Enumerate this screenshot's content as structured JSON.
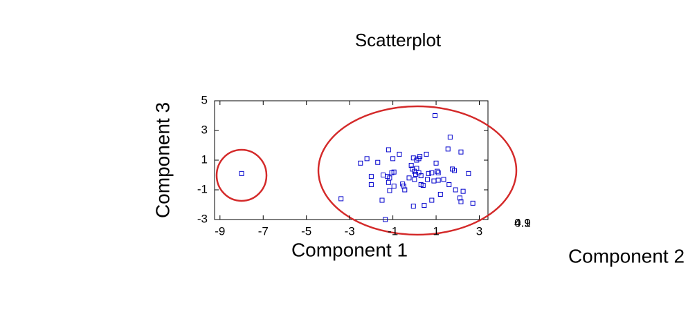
{
  "chart_data": {
    "type": "scatter",
    "title": "Scatterplot",
    "x_label": "Component 1",
    "y_label": "Component 3",
    "z_label": "Component 2",
    "z_tick_labels": [
      "0.1",
      "4.9"
    ],
    "color": "#0000cc",
    "xlim": [
      -9.25,
      3.4
    ],
    "xticks": [
      -9,
      -7,
      -5,
      -3,
      -1,
      1,
      3
    ],
    "ylim": [
      -3,
      5
    ],
    "yticks": [
      -3,
      -1,
      1,
      3,
      5
    ],
    "x": [
      -8.0,
      -3.4,
      -2.5,
      -2.2,
      -1.7,
      -2.0,
      -2.0,
      -1.45,
      -1.5,
      -1.35,
      -1.2,
      -1.25,
      -1.15,
      -1.05,
      -0.95,
      -1.2,
      -1.15,
      -1.0,
      -0.7,
      -0.95,
      -0.55,
      -0.5,
      -0.45,
      -0.25,
      -0.15,
      -0.1,
      -0.05,
      0.0,
      0.05,
      -0.05,
      0.0,
      0.1,
      0.1,
      0.2,
      0.25,
      0.2,
      0.3,
      0.3,
      0.4,
      0.45,
      0.55,
      0.6,
      0.65,
      0.8,
      0.8,
      0.9,
      0.95,
      1.0,
      1.05,
      1.1,
      1.1,
      1.2,
      1.35,
      1.55,
      1.6,
      1.65,
      1.75,
      1.85,
      1.9,
      2.15,
      2.1,
      2.15,
      2.25,
      2.5,
      2.7
    ],
    "values": [
      0.1,
      -1.6,
      0.8,
      1.1,
      0.85,
      -0.1,
      -0.65,
      0.0,
      -1.7,
      -3.0,
      1.7,
      -0.1,
      -0.2,
      0.15,
      0.2,
      -0.5,
      -1.05,
      1.1,
      1.4,
      -0.75,
      -0.6,
      -0.75,
      -1.0,
      -0.2,
      0.65,
      0.4,
      1.15,
      0.25,
      0.05,
      -2.1,
      -0.3,
      0.45,
      1.0,
      1.1,
      1.25,
      0.15,
      -0.05,
      -0.65,
      -0.7,
      -2.05,
      1.4,
      -0.3,
      0.1,
      0.15,
      -1.7,
      -0.4,
      4.0,
      0.8,
      0.25,
      0.15,
      -0.35,
      -1.3,
      -0.3,
      1.75,
      -0.65,
      2.55,
      0.4,
      0.3,
      -1.0,
      1.55,
      -1.55,
      -1.8,
      -1.1,
      0.1,
      -1.9
    ]
  }
}
